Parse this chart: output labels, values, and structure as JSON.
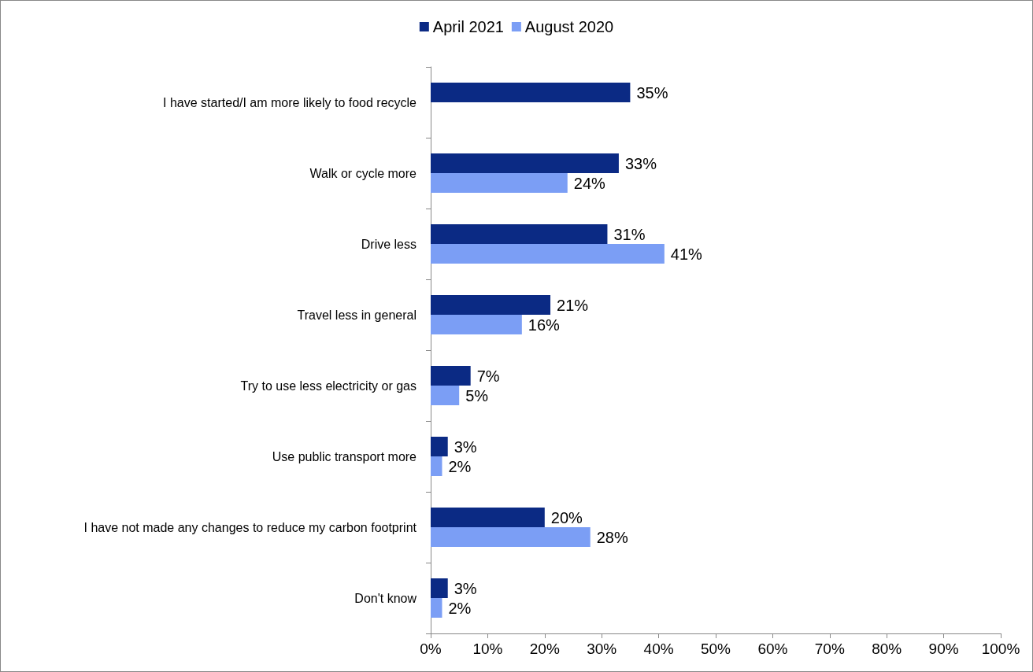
{
  "chart_data": {
    "type": "bar",
    "orientation": "horizontal",
    "categories": [
      "I have started/I am more likely to food recycle",
      "Walk or cycle more",
      "Drive less",
      "Travel less in general",
      "Try to use less electricity or gas",
      "Use public transport more",
      "I have not made any changes to reduce my carbon footprint",
      "Don't know"
    ],
    "series": [
      {
        "name": "April 2021",
        "color": "#0b2a84",
        "values": [
          35,
          33,
          31,
          21,
          7,
          3,
          20,
          3
        ],
        "value_labels": [
          "35%",
          "33%",
          "31%",
          "21%",
          "7%",
          "3%",
          "20%",
          "3%"
        ]
      },
      {
        "name": "August 2020",
        "color": "#7b9ef5",
        "values": [
          null,
          24,
          41,
          16,
          5,
          2,
          28,
          2
        ],
        "value_labels": [
          null,
          "24%",
          "41%",
          "16%",
          "5%",
          "2%",
          "28%",
          "2%"
        ]
      }
    ],
    "xlim": [
      0,
      100
    ],
    "xticks": [
      {
        "value": 0,
        "label": "0%"
      },
      {
        "value": 10,
        "label": "10%"
      },
      {
        "value": 20,
        "label": "20%"
      },
      {
        "value": 30,
        "label": "30%"
      },
      {
        "value": 40,
        "label": "40%"
      },
      {
        "value": 50,
        "label": "50%"
      },
      {
        "value": 60,
        "label": "60%"
      },
      {
        "value": 70,
        "label": "70%"
      },
      {
        "value": 80,
        "label": "80%"
      },
      {
        "value": 90,
        "label": "90%"
      },
      {
        "value": 100,
        "label": "100%"
      }
    ],
    "grid": false,
    "legend": "top"
  }
}
